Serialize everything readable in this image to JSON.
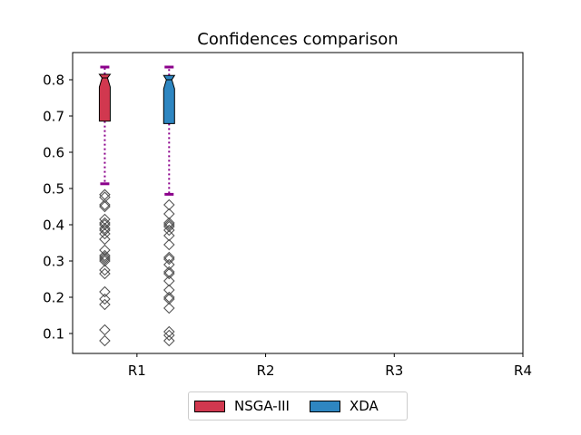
{
  "chart_data": {
    "type": "box",
    "title": "Confidences comparison",
    "xlabel": "",
    "ylabel": "",
    "categories": [
      "R1",
      "R2",
      "R3",
      "R4"
    ],
    "ylim": [
      0.045,
      0.875
    ],
    "yticks": [
      0.1,
      0.2,
      0.3,
      0.4,
      0.5,
      0.6,
      0.7,
      0.8
    ],
    "grid": false,
    "legend_position": "bottom-center",
    "series": [
      {
        "name": "NSGA-III",
        "color": "#d1384f",
        "category": "R1",
        "offset": -0.25,
        "whisker_low": 0.513,
        "q1": 0.686,
        "median": 0.805,
        "q3": 0.815,
        "whisker_high": 0.835,
        "outliers": [
          0.483,
          0.476,
          0.455,
          0.45,
          0.415,
          0.405,
          0.4,
          0.39,
          0.385,
          0.375,
          0.36,
          0.33,
          0.315,
          0.31,
          0.305,
          0.3,
          0.275,
          0.265,
          0.215,
          0.195,
          0.18,
          0.11,
          0.08
        ]
      },
      {
        "name": "XDA",
        "color": "#2e86c1",
        "category": "R1",
        "offset": 0.25,
        "whisker_low": 0.484,
        "q1": 0.679,
        "median": 0.8,
        "q3": 0.812,
        "whisker_high": 0.835,
        "outliers": [
          0.455,
          0.43,
          0.405,
          0.4,
          0.395,
          0.385,
          0.37,
          0.345,
          0.31,
          0.305,
          0.29,
          0.27,
          0.265,
          0.245,
          0.22,
          0.2,
          0.195,
          0.17,
          0.105,
          0.095,
          0.08
        ]
      }
    ]
  }
}
